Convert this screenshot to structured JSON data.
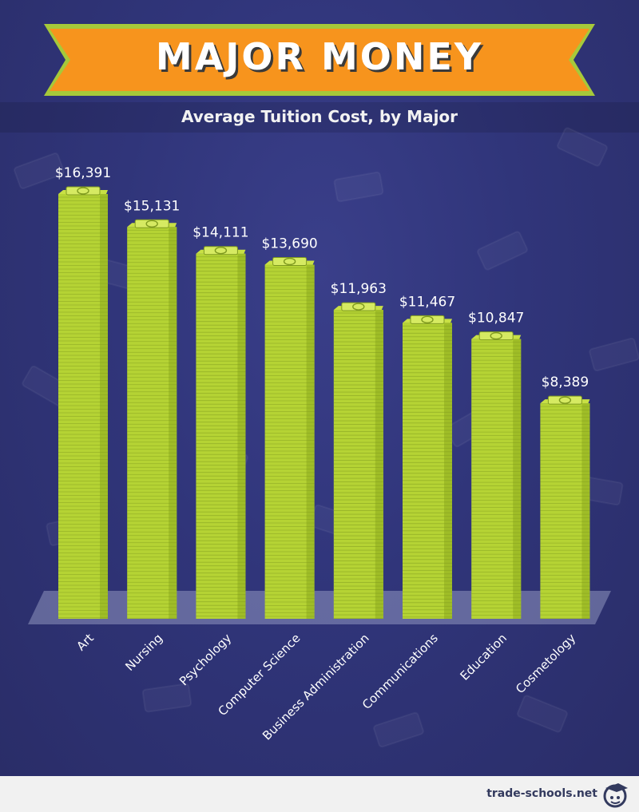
{
  "header": {
    "title": "MAJOR MONEY",
    "subtitle": "Average Tuition Cost, by Major"
  },
  "footer": {
    "site": "trade-schools.net",
    "logo_icon": "graduation-cap-face-icon"
  },
  "colors": {
    "background": "#2e3270",
    "banner": "#f7941d",
    "banner_border": "#a6c93a",
    "bar_green": "#b5d334",
    "bar_dark": "#7f9a1f",
    "label_text": "#ffffff",
    "footer_bg": "#f1f1f1"
  },
  "chart_data": {
    "type": "bar",
    "title": "Average Tuition Cost, by Major",
    "categories": [
      "Art",
      "Nursing",
      "Psychology",
      "Computer Science",
      "Business Administration",
      "Communications",
      "Education",
      "Cosmetology"
    ],
    "values": [
      16391,
      15131,
      14111,
      13690,
      11963,
      11467,
      10847,
      8389
    ],
    "value_labels": [
      "$16,391",
      "$15,131",
      "$14,111",
      "$13,690",
      "$11,963",
      "$11,467",
      "$10,847",
      "$8,389"
    ],
    "bar_style": "stacked-money-bills",
    "xlabel": "",
    "ylabel": "",
    "ylim": [
      0,
      16391
    ],
    "grid": false,
    "legend": "none"
  }
}
